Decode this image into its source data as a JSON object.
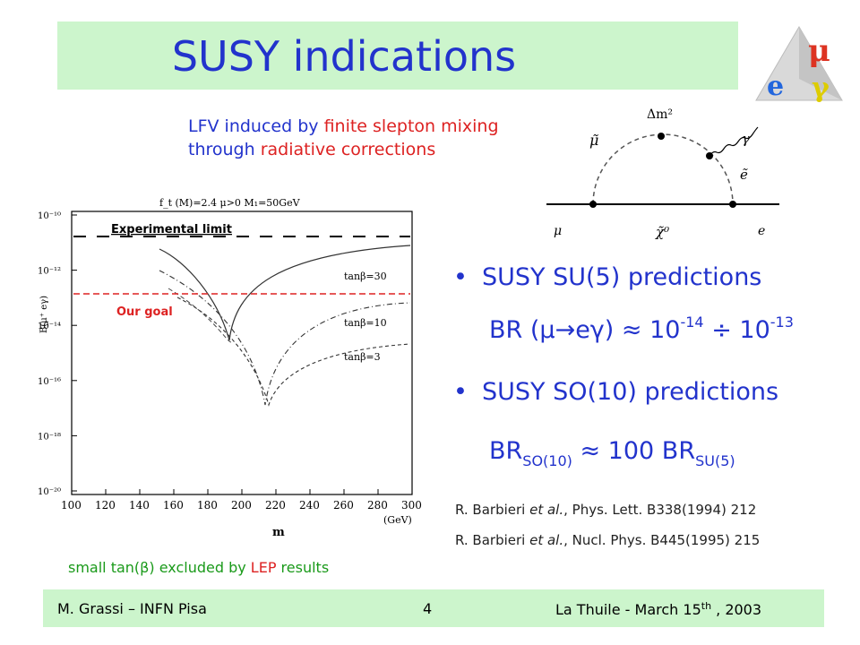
{
  "title": "SUSY indications",
  "lfv": {
    "line1_a": "LFV induced by ",
    "line1_b": "finite slepton mixing",
    "line2_a": "through ",
    "line2_b": "radiative corrections"
  },
  "feynman": {
    "delta_label": "Δm²",
    "smuon": "μ̃",
    "gamma": "γ",
    "selectron": "ẽ",
    "mu": "μ",
    "chi": "χ̃⁰",
    "e": "e"
  },
  "plot": {
    "header": "f_t (M)=2.4   μ>0   M₁=50GeV",
    "ylabel": "B(μ⁺ eγ)",
    "xlabel": "m",
    "xunit": "(GeV)",
    "xticks": [
      "100",
      "120",
      "140",
      "160",
      "180",
      "200",
      "220",
      "240",
      "260",
      "280",
      "300"
    ],
    "yticks": [
      "10⁻¹⁰",
      "10⁻¹²",
      "10⁻¹⁴",
      "10⁻¹⁶",
      "10⁻¹⁸",
      "10⁻²⁰"
    ],
    "experimental_limit": "Experimental limit",
    "our_goal": "Our goal",
    "curve_labels": [
      "tanβ=30",
      "tanβ=10",
      "tanβ=3"
    ],
    "colors": {
      "limit": "#000000",
      "goal": "#dd2222",
      "goal_text": "#dd2222"
    }
  },
  "bullets": [
    {
      "text": "SUSY SU(5) predictions"
    },
    {
      "text": "SUSY SO(10) predictions"
    }
  ],
  "br_su5": {
    "a": "BR (μ→eγ) ≈ 10",
    "exp1": "-14",
    "mid": " ÷ 10",
    "exp2": "-13"
  },
  "br_so10": {
    "a": "BR",
    "sub1": "SO(10)",
    "mid": " ≈ 100 BR",
    "sub2": "SU(5)"
  },
  "refs": [
    {
      "a": "R. Barbieri ",
      "i": "et al.",
      "b": ", Phys. Lett. B338(1994) 212"
    },
    {
      "a": "R. Barbieri ",
      "i": "et al.",
      "b": ", Nucl. Phys. B445(1995) 215"
    }
  ],
  "small_tan": {
    "a": "small tan(β) excluded by ",
    "b": "LEP",
    "c": " results"
  },
  "footer": {
    "left": "M. Grassi – INFN Pisa",
    "center": "4",
    "right_a": "La Thuile -  March 15",
    "right_sup": "th",
    "right_b": " , 2003"
  },
  "logo": {
    "letters": [
      "μ",
      "e",
      "γ"
    ],
    "colors": [
      "#dd3322",
      "#2266dd",
      "#ddcc00"
    ]
  },
  "colors": {
    "title_bg": "#ccf5cc",
    "title_text": "#2233cc",
    "accent_red": "#dd2222",
    "green": "#1a9a1a"
  }
}
